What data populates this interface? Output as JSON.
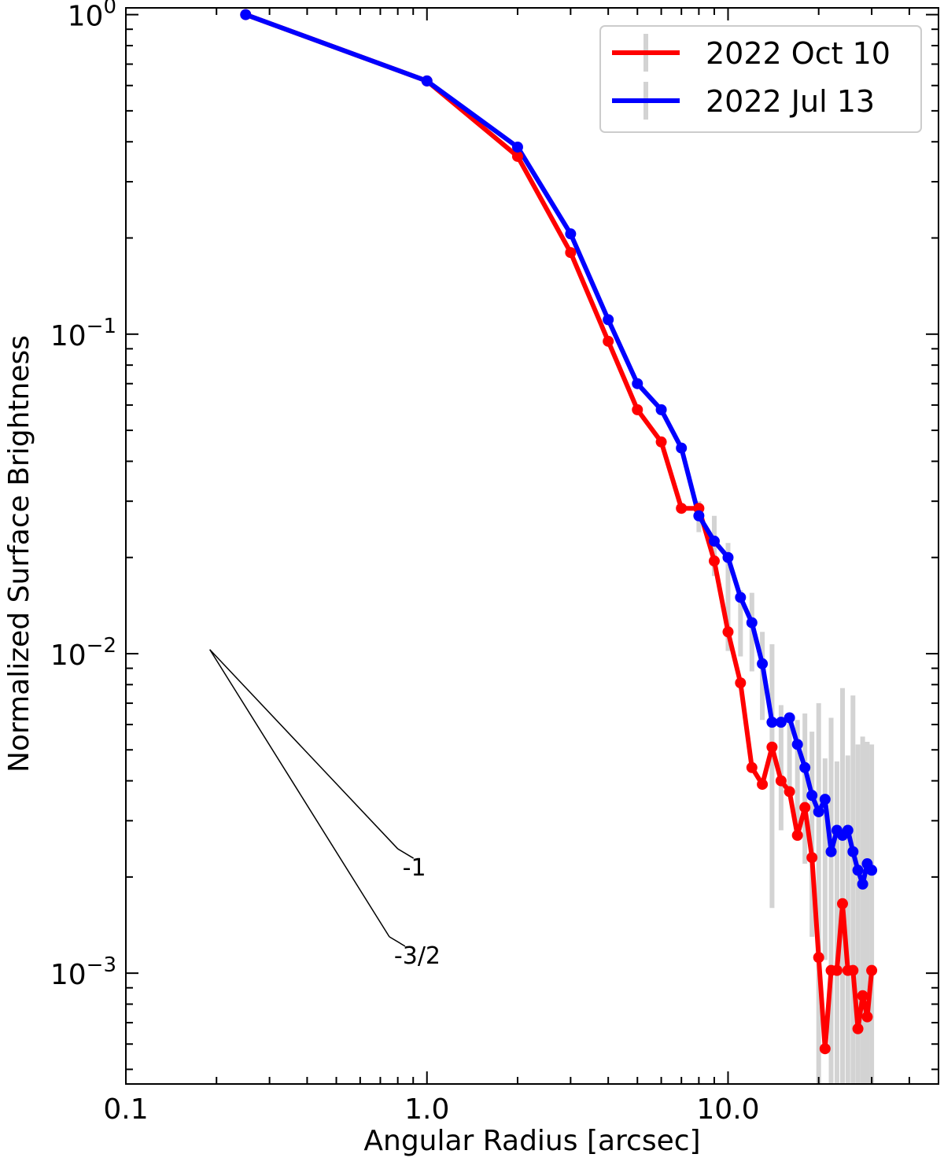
{
  "chart_data": {
    "type": "line",
    "xlabel": "Angular Radius [arcsec]",
    "ylabel": "Normalized Surface Brightness",
    "x_scale": "log",
    "y_scale": "log",
    "xlim": [
      0.1,
      50
    ],
    "ylim": [
      0.00045,
      1.05
    ],
    "x_ticks": [
      {
        "value": 0.1,
        "label": "0.1"
      },
      {
        "value": 1.0,
        "label": "1.0"
      },
      {
        "value": 10.0,
        "label": "10.0"
      }
    ],
    "y_ticks": [
      {
        "value": 1,
        "base": "10",
        "exp": "0"
      },
      {
        "value": 0.1,
        "base": "10",
        "exp": "−1"
      },
      {
        "value": 0.01,
        "base": "10",
        "exp": "−2"
      },
      {
        "value": 0.001,
        "base": "10",
        "exp": "−3"
      }
    ],
    "grid": false,
    "legend_position": "top-right",
    "series": [
      {
        "name": "2022 Oct 10",
        "color": "#ff0000",
        "x": [
          0.25,
          1.0,
          2.0,
          3.0,
          4.0,
          5.0,
          6.0,
          7.0,
          8.0,
          9.0,
          10.0,
          11.0,
          12.0,
          13.0,
          14.0,
          15.0,
          16.0,
          17.0,
          18.0,
          19.0,
          20.0,
          21.0,
          22.0,
          23.0,
          24.0,
          25.0,
          26.0,
          27.0,
          28.0,
          29.0,
          30.0
        ],
        "y": [
          1.0,
          0.62,
          0.36,
          0.18,
          0.095,
          0.058,
          0.046,
          0.0285,
          0.0285,
          0.0195,
          0.0117,
          0.0081,
          0.0044,
          0.0039,
          0.0051,
          0.004,
          0.0037,
          0.0027,
          0.0033,
          0.0023,
          0.00112,
          0.00058,
          0.00102,
          0.00102,
          0.00165,
          0.00102,
          0.00102,
          0.00067,
          0.00085,
          0.00073,
          0.00102
        ]
      },
      {
        "name": "2022 Jul 13",
        "color": "#0000ff",
        "x": [
          0.25,
          1.0,
          2.0,
          3.0,
          4.0,
          5.0,
          6.0,
          7.0,
          8.0,
          9.0,
          10.0,
          11.0,
          12.0,
          13.0,
          14.0,
          15.0,
          16.0,
          17.0,
          18.0,
          19.0,
          20.0,
          21.0,
          22.0,
          23.0,
          24.0,
          25.0,
          26.0,
          27.0,
          28.0,
          29.0,
          30.0
        ],
        "y": [
          1.0,
          0.62,
          0.385,
          0.206,
          0.111,
          0.07,
          0.058,
          0.044,
          0.027,
          0.0225,
          0.02,
          0.015,
          0.0125,
          0.0093,
          0.0061,
          0.0061,
          0.0063,
          0.0052,
          0.0044,
          0.0036,
          0.0032,
          0.0035,
          0.0024,
          0.0028,
          0.0027,
          0.0028,
          0.0024,
          0.0021,
          0.0019,
          0.0022,
          0.0021
        ]
      }
    ],
    "error_bars": {
      "color": "#d3d3d3",
      "x": [
        8.0,
        9.0,
        10.0,
        11.0,
        12.0,
        13.0,
        14.0,
        15.0,
        16.0,
        17.0,
        18.0,
        19.0,
        20.0,
        21.0,
        22.0,
        23.0,
        24.0,
        25.0,
        26.0,
        27.0,
        28.0,
        29.0,
        30.0
      ],
      "low": [
        0.024,
        0.0175,
        0.0102,
        0.0098,
        0.0088,
        0.0062,
        0.0016,
        0.0028,
        0.0038,
        0.0026,
        0.0022,
        0.0013,
        0.00045,
        0.0011,
        0.00045,
        0.00045,
        0.00045,
        0.00045,
        0.00045,
        0.00045,
        0.00045,
        0.00045,
        0.00045
      ],
      "high": [
        0.03,
        0.027,
        0.0222,
        0.0158,
        0.0155,
        0.0117,
        0.0107,
        0.0069,
        0.0065,
        0.0062,
        0.0065,
        0.0057,
        0.007,
        0.0047,
        0.0063,
        0.0046,
        0.0078,
        0.0048,
        0.0074,
        0.0052,
        0.0055,
        0.0053,
        0.0052
      ]
    },
    "annotations": [
      {
        "label": "-1",
        "slope": -1,
        "x0": 0.19,
        "y0": 0.0103,
        "x1": 0.8,
        "y1": 0.00245
      },
      {
        "label": "-3/2",
        "slope": -1.5,
        "x0": 0.19,
        "y0": 0.0103,
        "x1": 0.75,
        "y1": 0.0013
      }
    ]
  }
}
